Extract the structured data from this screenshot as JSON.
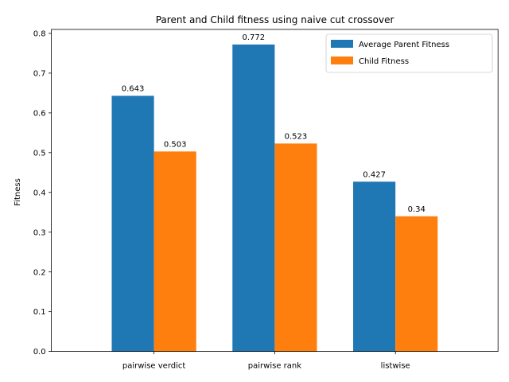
{
  "chart_data": {
    "type": "bar",
    "title": "Parent and Child fitness using naive cut crossover",
    "xlabel": "",
    "ylabel": "Fitness",
    "categories": [
      "pairwise verdict",
      "pairwise rank",
      "listwise"
    ],
    "series": [
      {
        "name": "Average Parent Fitness",
        "values": [
          0.643,
          0.772,
          0.427
        ],
        "labels": [
          "0.643",
          "0.772",
          "0.427"
        ],
        "color": "#1f77b4"
      },
      {
        "name": "Child Fitness",
        "values": [
          0.503,
          0.523,
          0.34
        ],
        "labels": [
          "0.503",
          "0.523",
          "0.34"
        ],
        "color": "#ff7f0e"
      }
    ],
    "ylim": [
      0,
      0.81
    ],
    "yticks": [
      0.0,
      0.1,
      0.2,
      0.3,
      0.4,
      0.5,
      0.6,
      0.7,
      0.8
    ],
    "ytick_labels": [
      "0.0",
      "0.1",
      "0.2",
      "0.3",
      "0.4",
      "0.5",
      "0.6",
      "0.7",
      "0.8"
    ],
    "grid": false,
    "legend_position": "top-right"
  }
}
